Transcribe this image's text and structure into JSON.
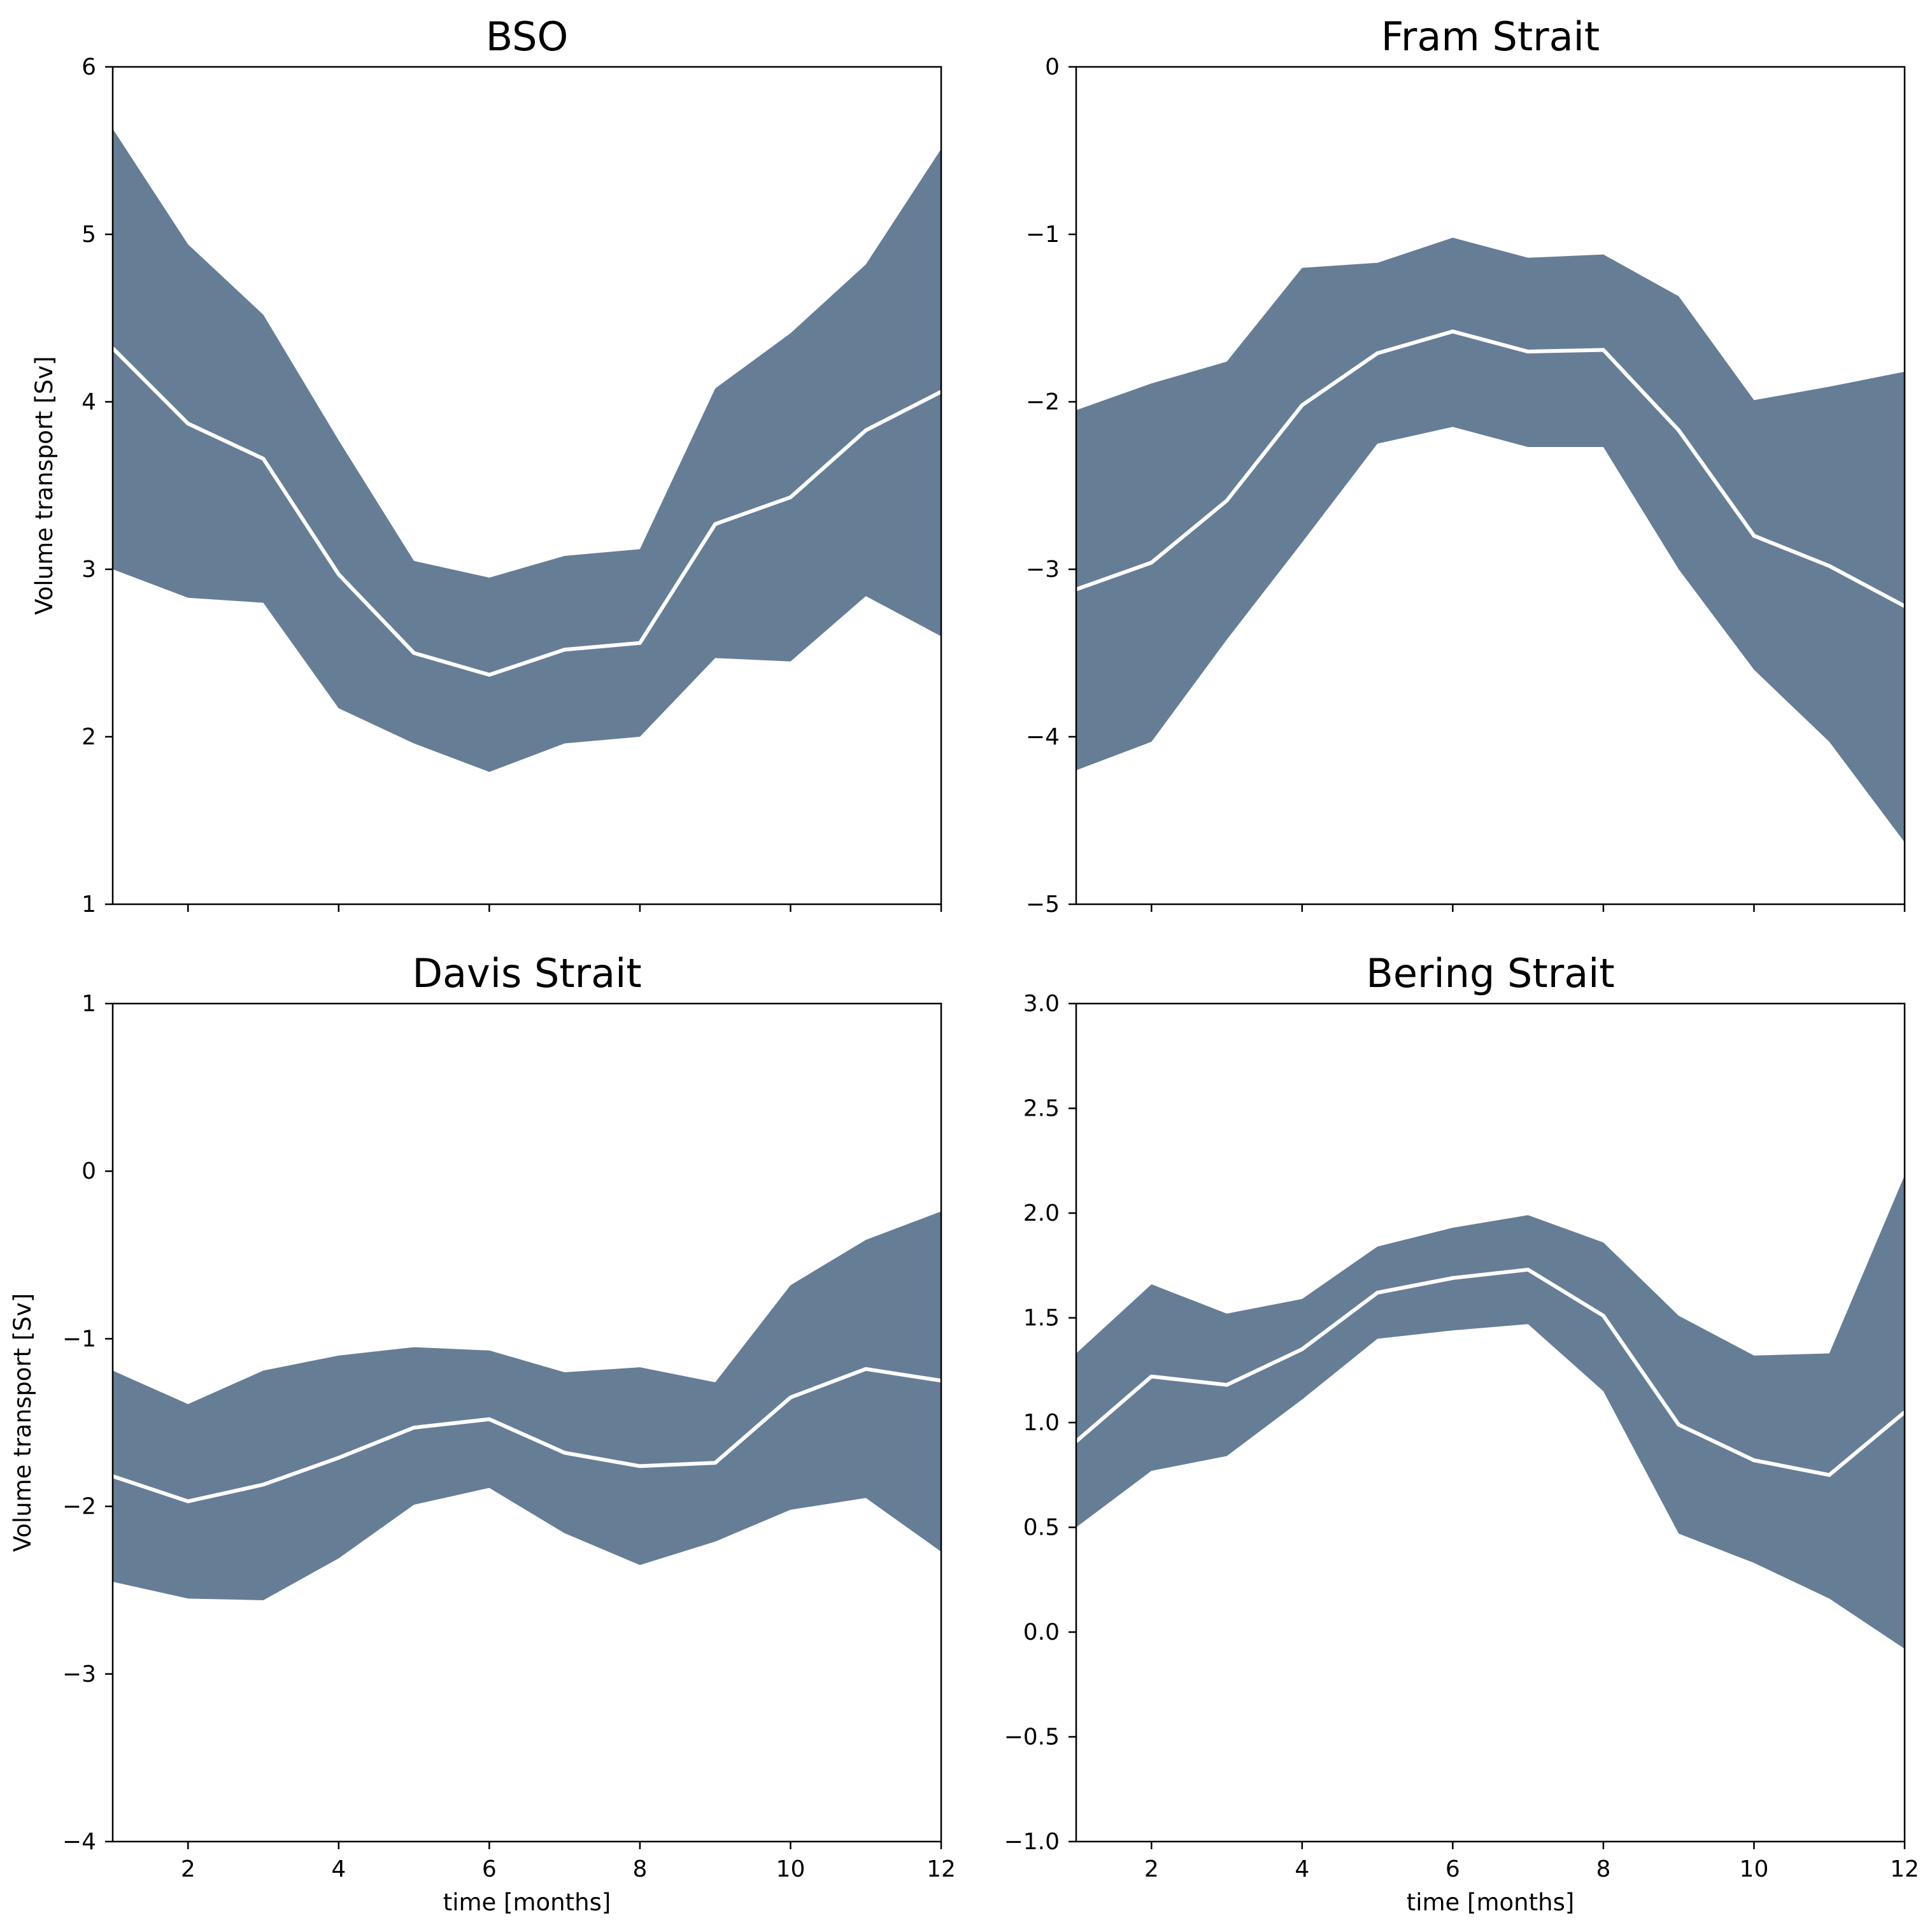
{
  "colors": {
    "band_fill": "#667d96",
    "mean_line": "#ffffff",
    "axes": "#000000",
    "background": "#ffffff"
  },
  "chart_data": [
    {
      "type": "area",
      "title": "BSO",
      "xlabel": "",
      "ylabel": "Volume transport [Sv]",
      "xlim": [
        1,
        12
      ],
      "ylim": [
        1,
        6
      ],
      "x": [
        1,
        2,
        3,
        4,
        5,
        6,
        7,
        8,
        9,
        10,
        11,
        12
      ],
      "x_ticks": [
        2,
        4,
        6,
        8,
        10,
        12
      ],
      "x_tick_labels_visible": false,
      "y_ticks": [
        1,
        2,
        3,
        4,
        5,
        6
      ],
      "y_tick_labels": [
        "1",
        "2",
        "3",
        "4",
        "5",
        "6"
      ],
      "upper": [
        5.63,
        4.94,
        4.52,
        3.77,
        3.05,
        2.95,
        3.08,
        3.12,
        4.08,
        4.41,
        4.82,
        5.51
      ],
      "mean": [
        4.32,
        3.87,
        3.66,
        2.97,
        2.5,
        2.37,
        2.52,
        2.56,
        3.27,
        3.43,
        3.83,
        4.06
      ],
      "lower": [
        3.0,
        2.83,
        2.8,
        2.17,
        1.96,
        1.79,
        1.96,
        2.0,
        2.47,
        2.45,
        2.84,
        2.6
      ]
    },
    {
      "type": "area",
      "title": "Fram Strait",
      "xlabel": "",
      "ylabel": "",
      "xlim": [
        1,
        12
      ],
      "ylim": [
        -5,
        0
      ],
      "x": [
        1,
        2,
        3,
        4,
        5,
        6,
        7,
        8,
        9,
        10,
        11,
        12
      ],
      "x_ticks": [
        2,
        4,
        6,
        8,
        10,
        12
      ],
      "x_tick_labels_visible": false,
      "y_ticks": [
        -5,
        -4,
        -3,
        -2,
        -1,
        0
      ],
      "y_tick_labels": [
        "−5",
        "−4",
        "−3",
        "−2",
        "−1",
        "0"
      ],
      "upper": [
        -2.05,
        -1.89,
        -1.76,
        -1.2,
        -1.17,
        -1.02,
        -1.14,
        -1.12,
        -1.37,
        -1.99,
        -1.91,
        -1.82
      ],
      "mean": [
        -3.12,
        -2.96,
        -2.59,
        -2.02,
        -1.71,
        -1.58,
        -1.7,
        -1.69,
        -2.17,
        -2.8,
        -2.98,
        -3.22
      ],
      "lower": [
        -4.2,
        -4.03,
        -3.42,
        -2.84,
        -2.25,
        -2.15,
        -2.27,
        -2.27,
        -3.0,
        -3.6,
        -4.03,
        -4.63
      ]
    },
    {
      "type": "area",
      "title": "Davis Strait",
      "xlabel": "time [months]",
      "ylabel": "Volume transport [Sv]",
      "xlim": [
        1,
        12
      ],
      "ylim": [
        -4,
        1
      ],
      "x": [
        1,
        2,
        3,
        4,
        5,
        6,
        7,
        8,
        9,
        10,
        11,
        12
      ],
      "x_ticks": [
        2,
        4,
        6,
        8,
        10,
        12
      ],
      "x_tick_labels_visible": true,
      "x_tick_labels": [
        "2",
        "4",
        "6",
        "8",
        "10",
        "12"
      ],
      "y_ticks": [
        -4,
        -3,
        -2,
        -1,
        0,
        1
      ],
      "y_tick_labels": [
        "−4",
        "−3",
        "−2",
        "−1",
        "0",
        "1"
      ],
      "upper": [
        -1.19,
        -1.39,
        -1.19,
        -1.1,
        -1.05,
        -1.07,
        -1.2,
        -1.17,
        -1.26,
        -0.68,
        -0.41,
        -0.24
      ],
      "mean": [
        -1.82,
        -1.97,
        -1.87,
        -1.71,
        -1.53,
        -1.48,
        -1.68,
        -1.76,
        -1.74,
        -1.35,
        -1.18,
        -1.25
      ],
      "lower": [
        -2.45,
        -2.55,
        -2.56,
        -2.31,
        -1.99,
        -1.89,
        -2.16,
        -2.35,
        -2.21,
        -2.02,
        -1.95,
        -2.27
      ]
    },
    {
      "type": "area",
      "title": "Bering Strait",
      "xlabel": "time [months]",
      "ylabel": "",
      "xlim": [
        1,
        12
      ],
      "ylim": [
        -1,
        3
      ],
      "x": [
        1,
        2,
        3,
        4,
        5,
        6,
        7,
        8,
        9,
        10,
        11,
        12
      ],
      "x_ticks": [
        2,
        4,
        6,
        8,
        10,
        12
      ],
      "x_tick_labels_visible": true,
      "x_tick_labels": [
        "2",
        "4",
        "6",
        "8",
        "10",
        "12"
      ],
      "y_ticks": [
        -1.0,
        -0.5,
        0.0,
        0.5,
        1.0,
        1.5,
        2.0,
        2.5,
        3.0
      ],
      "y_tick_labels": [
        "−1.0",
        "−0.5",
        "0.0",
        "0.5",
        "1.0",
        "1.5",
        "2.0",
        "2.5",
        "3.0"
      ],
      "upper": [
        1.33,
        1.66,
        1.52,
        1.59,
        1.84,
        1.93,
        1.99,
        1.86,
        1.51,
        1.32,
        1.33,
        2.18
      ],
      "mean": [
        0.91,
        1.22,
        1.18,
        1.35,
        1.62,
        1.69,
        1.73,
        1.51,
        0.99,
        0.82,
        0.75,
        1.05
      ],
      "lower": [
        0.5,
        0.77,
        0.84,
        1.11,
        1.4,
        1.44,
        1.47,
        1.15,
        0.47,
        0.33,
        0.16,
        -0.08
      ]
    }
  ]
}
